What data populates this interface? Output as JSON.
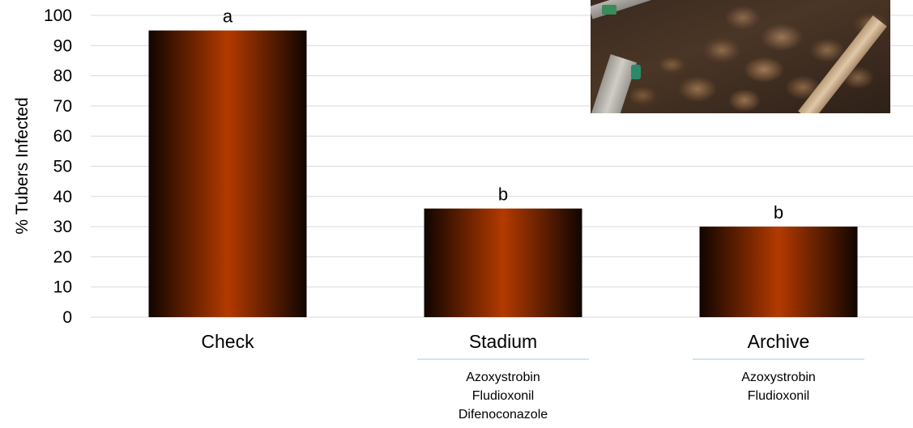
{
  "chart_data": {
    "type": "bar",
    "title": "",
    "xlabel": "",
    "ylabel": "% Tubers Infected",
    "ylim": [
      0,
      100
    ],
    "yticks": [
      0,
      10,
      20,
      30,
      40,
      50,
      60,
      70,
      80,
      90,
      100
    ],
    "grid": true,
    "categories": [
      "Check",
      "Stadium",
      "Archive"
    ],
    "values": [
      95,
      36,
      30
    ],
    "significance_letters": [
      "a",
      "b",
      "b"
    ],
    "active_ingredients": [
      [],
      [
        "Azoxystrobin",
        "Fludioxonil",
        "Difenoconazole"
      ],
      [
        "Azoxystrobin",
        "Fludioxonil"
      ]
    ],
    "bar_colors": {
      "center": "#b33a00",
      "edge": "#100500"
    },
    "gridline_color": "#d9d9d9",
    "inset_photo": "potato tubers under seed-treatment spray applicator"
  }
}
